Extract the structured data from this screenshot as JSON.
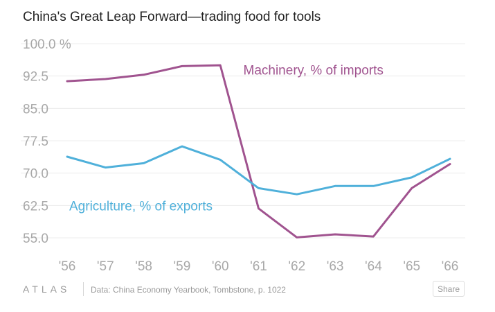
{
  "chart_data": {
    "type": "line",
    "title": "China's Great Leap Forward—trading food for tools",
    "xlabel": "",
    "ylabel": "",
    "categories": [
      "'56",
      "'57",
      "'58",
      "'59",
      "'60",
      "'61",
      "'62",
      "'63",
      "'64",
      "'65",
      "'66"
    ],
    "ylim": [
      51.5,
      100
    ],
    "yticks": [
      55.0,
      62.5,
      70.0,
      77.5,
      85.0,
      92.5,
      100.0
    ],
    "ytick_labels": [
      "55.0",
      "62.5",
      "70.0",
      "77.5",
      "85.0",
      "92.5",
      "100.0 %"
    ],
    "grid": true,
    "series": [
      {
        "name": "Machinery, % of imports",
        "color": "#a0538f",
        "label_anchor_category": "'61",
        "label_anchor_value": 94,
        "values": [
          91.3,
          91.8,
          92.8,
          94.8,
          95.0,
          61.8,
          55.1,
          55.8,
          55.3,
          66.5,
          72.1
        ]
      },
      {
        "name": "Agriculture, % of exports",
        "color": "#4fb0da",
        "label_anchor_category": "'56",
        "label_anchor_value": 62.5,
        "values": [
          73.8,
          71.3,
          72.3,
          76.2,
          73.1,
          66.5,
          65.1,
          67.0,
          67.0,
          69.0,
          73.3
        ]
      }
    ]
  },
  "footer": {
    "logo_text": "ATLAS",
    "source": "Data: China Economy Yearbook, Tombstone, p. 1022",
    "share_label": "Share"
  }
}
